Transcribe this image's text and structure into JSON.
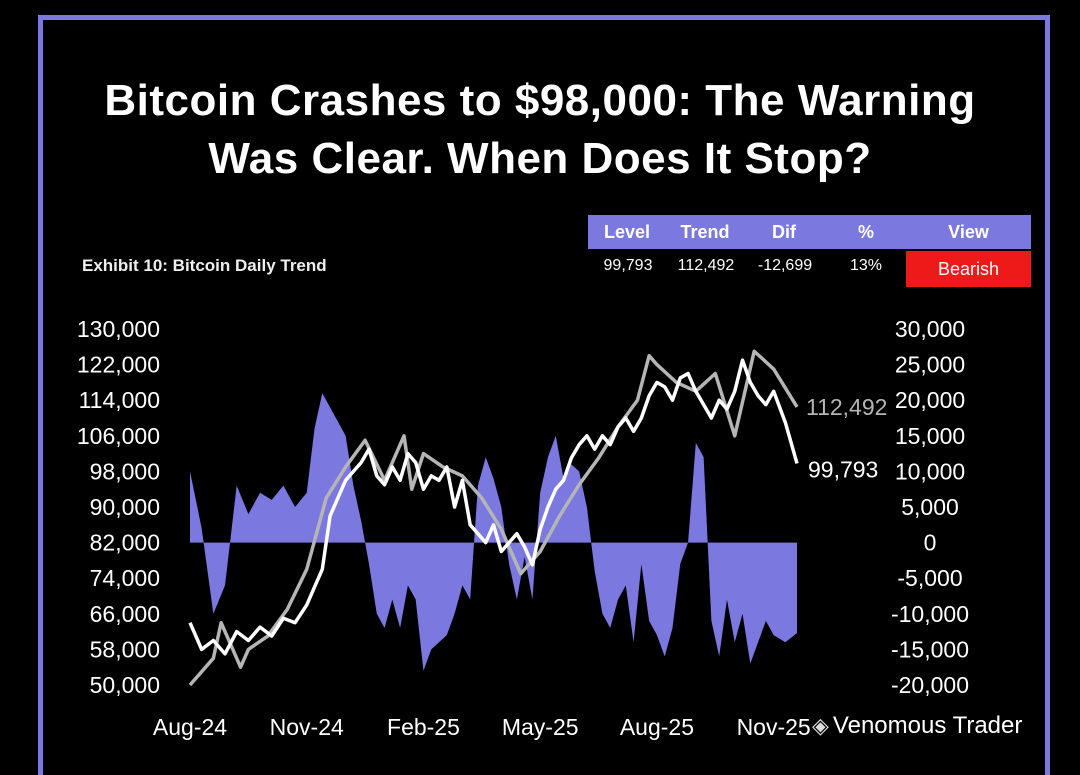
{
  "title_line1": "Bitcoin Crashes to $98,000: The Warning",
  "title_line2": "Was Clear. When Does It Stop?",
  "exhibit_label": "Exhibit 10: Bitcoin Daily Trend",
  "table": {
    "headers": [
      "Level",
      "Trend",
      "Dif",
      "%",
      "View"
    ],
    "values": [
      "99,793",
      "112,492",
      "-12,699",
      "13%"
    ],
    "view": "Bearish"
  },
  "watermark": "Venomous Trader",
  "colors": {
    "frame": "#7b78e0",
    "bars": "#7b78e0",
    "price": "#ffffff",
    "trend": "#b5b5b5",
    "bearish": "#ee1a1a",
    "background": "#000000"
  },
  "chart_data": {
    "type": "line",
    "title": "Exhibit 10: Bitcoin Daily Trend",
    "x_tick_labels": [
      "Aug-24",
      "Nov-24",
      "Feb-25",
      "May-25",
      "Aug-25",
      "Nov-25"
    ],
    "x_tick_months": [
      0,
      3,
      6,
      9,
      12,
      15
    ],
    "y_left_ticks": [
      "130,000",
      "122,000",
      "114,000",
      "106,000",
      "98,000",
      "90,000",
      "82,000",
      "74,000",
      "66,000",
      "58,000",
      "50,000"
    ],
    "y_left_range": [
      50000,
      130000
    ],
    "y_right_ticks": [
      "30,000",
      "25,000",
      "20,000",
      "15,000",
      "10,000",
      "5,000",
      "0",
      "-5,000",
      "-10,000",
      "-15,000",
      "-20,000"
    ],
    "y_right_range": [
      -20000,
      30000
    ],
    "end_labels": {
      "level": "99,793",
      "trend": "112,492"
    },
    "series": [
      {
        "name": "Bitcoin price (Level)",
        "axis": "left",
        "style": "line",
        "color": "#ffffff",
        "x_months": [
          0,
          0.3,
          0.6,
          0.9,
          1.2,
          1.5,
          1.8,
          2.1,
          2.4,
          2.7,
          3.0,
          3.2,
          3.4,
          3.6,
          3.8,
          4.0,
          4.2,
          4.4,
          4.6,
          4.8,
          5.0,
          5.2,
          5.4,
          5.6,
          5.8,
          6.0,
          6.2,
          6.4,
          6.6,
          6.8,
          7.0,
          7.2,
          7.4,
          7.6,
          7.8,
          8.0,
          8.2,
          8.4,
          8.6,
          8.8,
          9.0,
          9.2,
          9.4,
          9.6,
          9.8,
          10.0,
          10.2,
          10.4,
          10.6,
          10.8,
          11.0,
          11.2,
          11.4,
          11.6,
          11.8,
          12.0,
          12.2,
          12.4,
          12.6,
          12.8,
          13.0,
          13.2,
          13.4,
          13.6,
          13.8,
          14.0,
          14.2,
          14.4,
          14.6,
          14.8,
          15.0,
          15.3,
          15.6
        ],
        "values": [
          64000,
          58000,
          60000,
          57000,
          62000,
          60000,
          63000,
          61000,
          65000,
          64000,
          68000,
          72000,
          76000,
          88000,
          92000,
          96000,
          98000,
          100000,
          103000,
          97000,
          95000,
          99000,
          96000,
          102000,
          100000,
          94000,
          97000,
          96000,
          99000,
          90000,
          96000,
          86000,
          84000,
          82000,
          86000,
          80000,
          82000,
          84000,
          81000,
          77000,
          85000,
          90000,
          94000,
          96000,
          101000,
          104000,
          106000,
          103000,
          106000,
          104000,
          108000,
          110000,
          107000,
          110000,
          115000,
          118000,
          117000,
          114000,
          119000,
          120000,
          116000,
          113000,
          110000,
          114000,
          112000,
          116000,
          123000,
          118000,
          115000,
          113000,
          116000,
          109000,
          99793
        ]
      },
      {
        "name": "Trend",
        "axis": "left",
        "style": "line",
        "color": "#b5b5b5",
        "x_months": [
          0,
          0.6,
          0.8,
          1.3,
          1.5,
          2.0,
          2.5,
          3.0,
          3.5,
          4.0,
          4.5,
          5.0,
          5.5,
          5.7,
          6.0,
          6.5,
          7.0,
          7.5,
          8.0,
          8.5,
          9.0,
          9.5,
          10.0,
          10.5,
          11.0,
          11.5,
          11.8,
          12.0,
          12.5,
          13.0,
          13.5,
          14.0,
          14.5,
          15.0,
          15.6
        ],
        "values": [
          50000,
          56000,
          64000,
          54000,
          58000,
          61000,
          67000,
          76000,
          92000,
          99000,
          105000,
          96000,
          106000,
          94000,
          102000,
          99000,
          97000,
          92000,
          85000,
          75000,
          80000,
          88000,
          95000,
          101000,
          108000,
          114000,
          124000,
          122000,
          118000,
          116000,
          120000,
          106000,
          125000,
          121000,
          112492
        ]
      },
      {
        "name": "Dif",
        "axis": "right",
        "style": "area",
        "color": "#7b78e0",
        "x_months": [
          0,
          0.3,
          0.6,
          0.9,
          1.2,
          1.5,
          1.8,
          2.1,
          2.4,
          2.7,
          3.0,
          3.2,
          3.4,
          3.6,
          3.8,
          4.0,
          4.2,
          4.4,
          4.6,
          4.8,
          5.0,
          5.2,
          5.4,
          5.6,
          5.8,
          6.0,
          6.2,
          6.4,
          6.6,
          6.8,
          7.0,
          7.2,
          7.4,
          7.6,
          7.8,
          8.0,
          8.2,
          8.4,
          8.6,
          8.8,
          9.0,
          9.2,
          9.4,
          9.6,
          9.8,
          10.0,
          10.2,
          10.4,
          10.6,
          10.8,
          11.0,
          11.2,
          11.4,
          11.6,
          11.8,
          12.0,
          12.2,
          12.4,
          12.6,
          12.8,
          13.0,
          13.2,
          13.4,
          13.6,
          13.8,
          14.0,
          14.2,
          14.4,
          14.6,
          14.8,
          15.0,
          15.3,
          15.6
        ],
        "values": [
          10000,
          2000,
          -10000,
          -6000,
          8000,
          4000,
          7000,
          6000,
          8000,
          5000,
          7000,
          16000,
          21000,
          19000,
          17000,
          15000,
          8000,
          3000,
          -3000,
          -10000,
          -12000,
          -8000,
          -12000,
          -6000,
          -8000,
          -18000,
          -15000,
          -14000,
          -13000,
          -10000,
          -6000,
          -8000,
          8000,
          12000,
          9000,
          5000,
          -3000,
          -8000,
          -2000,
          -8000,
          7000,
          12000,
          15000,
          9000,
          11000,
          10000,
          5000,
          -4000,
          -10000,
          -12000,
          -8000,
          -6000,
          -14000,
          -3000,
          -11000,
          -13000,
          -16000,
          -12000,
          -3000,
          0,
          14000,
          12000,
          -11000,
          -16000,
          -8000,
          -14000,
          -10000,
          -17000,
          -14000,
          -11000,
          -13000,
          -14000,
          -12699
        ]
      }
    ]
  }
}
